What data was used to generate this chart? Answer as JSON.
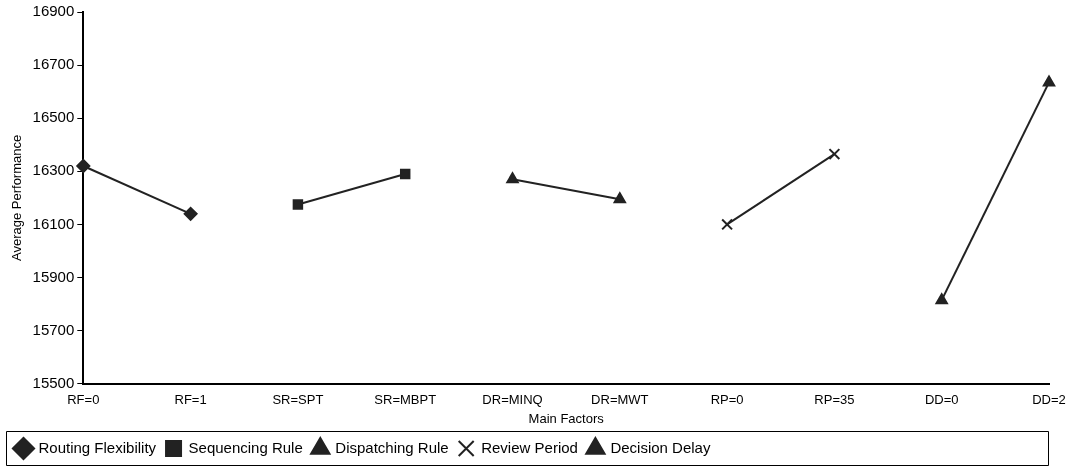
{
  "chart_data": {
    "type": "line",
    "xlabel": "Main Factors",
    "ylabel": "Average Performance",
    "categories": [
      "RF=0",
      "RF=1",
      "SR=SPT",
      "SR=MBPT",
      "DR=MINQ",
      "DR=MWT",
      "RP=0",
      "RP=35",
      "DD=0",
      "DD=2"
    ],
    "series": [
      {
        "name": "Routing Flexibility",
        "color": "#222222",
        "marker": "diamond",
        "values": [
          16320,
          16140,
          null,
          null,
          null,
          null,
          null,
          null,
          null,
          null
        ]
      },
      {
        "name": "Sequencing Rule",
        "color": "#222222",
        "marker": "square",
        "values": [
          null,
          null,
          16175,
          16290,
          null,
          null,
          null,
          null,
          null,
          null
        ]
      },
      {
        "name": "Dispatching Rule",
        "color": "#222222",
        "marker": "triangle",
        "values": [
          null,
          null,
          null,
          null,
          16270,
          16195,
          null,
          null,
          null,
          null
        ]
      },
      {
        "name": "Review Period",
        "color": "#222222",
        "marker": "cross",
        "values": [
          null,
          null,
          null,
          null,
          null,
          null,
          16100,
          16365,
          null,
          null
        ]
      },
      {
        "name": "Decision Delay",
        "color": "#222222",
        "marker": "triangle",
        "values": [
          null,
          null,
          null,
          null,
          null,
          null,
          null,
          null,
          15815,
          16635
        ]
      }
    ],
    "ylim": [
      15500,
      16900
    ],
    "yticks": [
      15500,
      15700,
      15900,
      16100,
      16300,
      16500,
      16700,
      16900
    ],
    "grid": false,
    "legend": "bottom",
    "line_style": "solid"
  }
}
